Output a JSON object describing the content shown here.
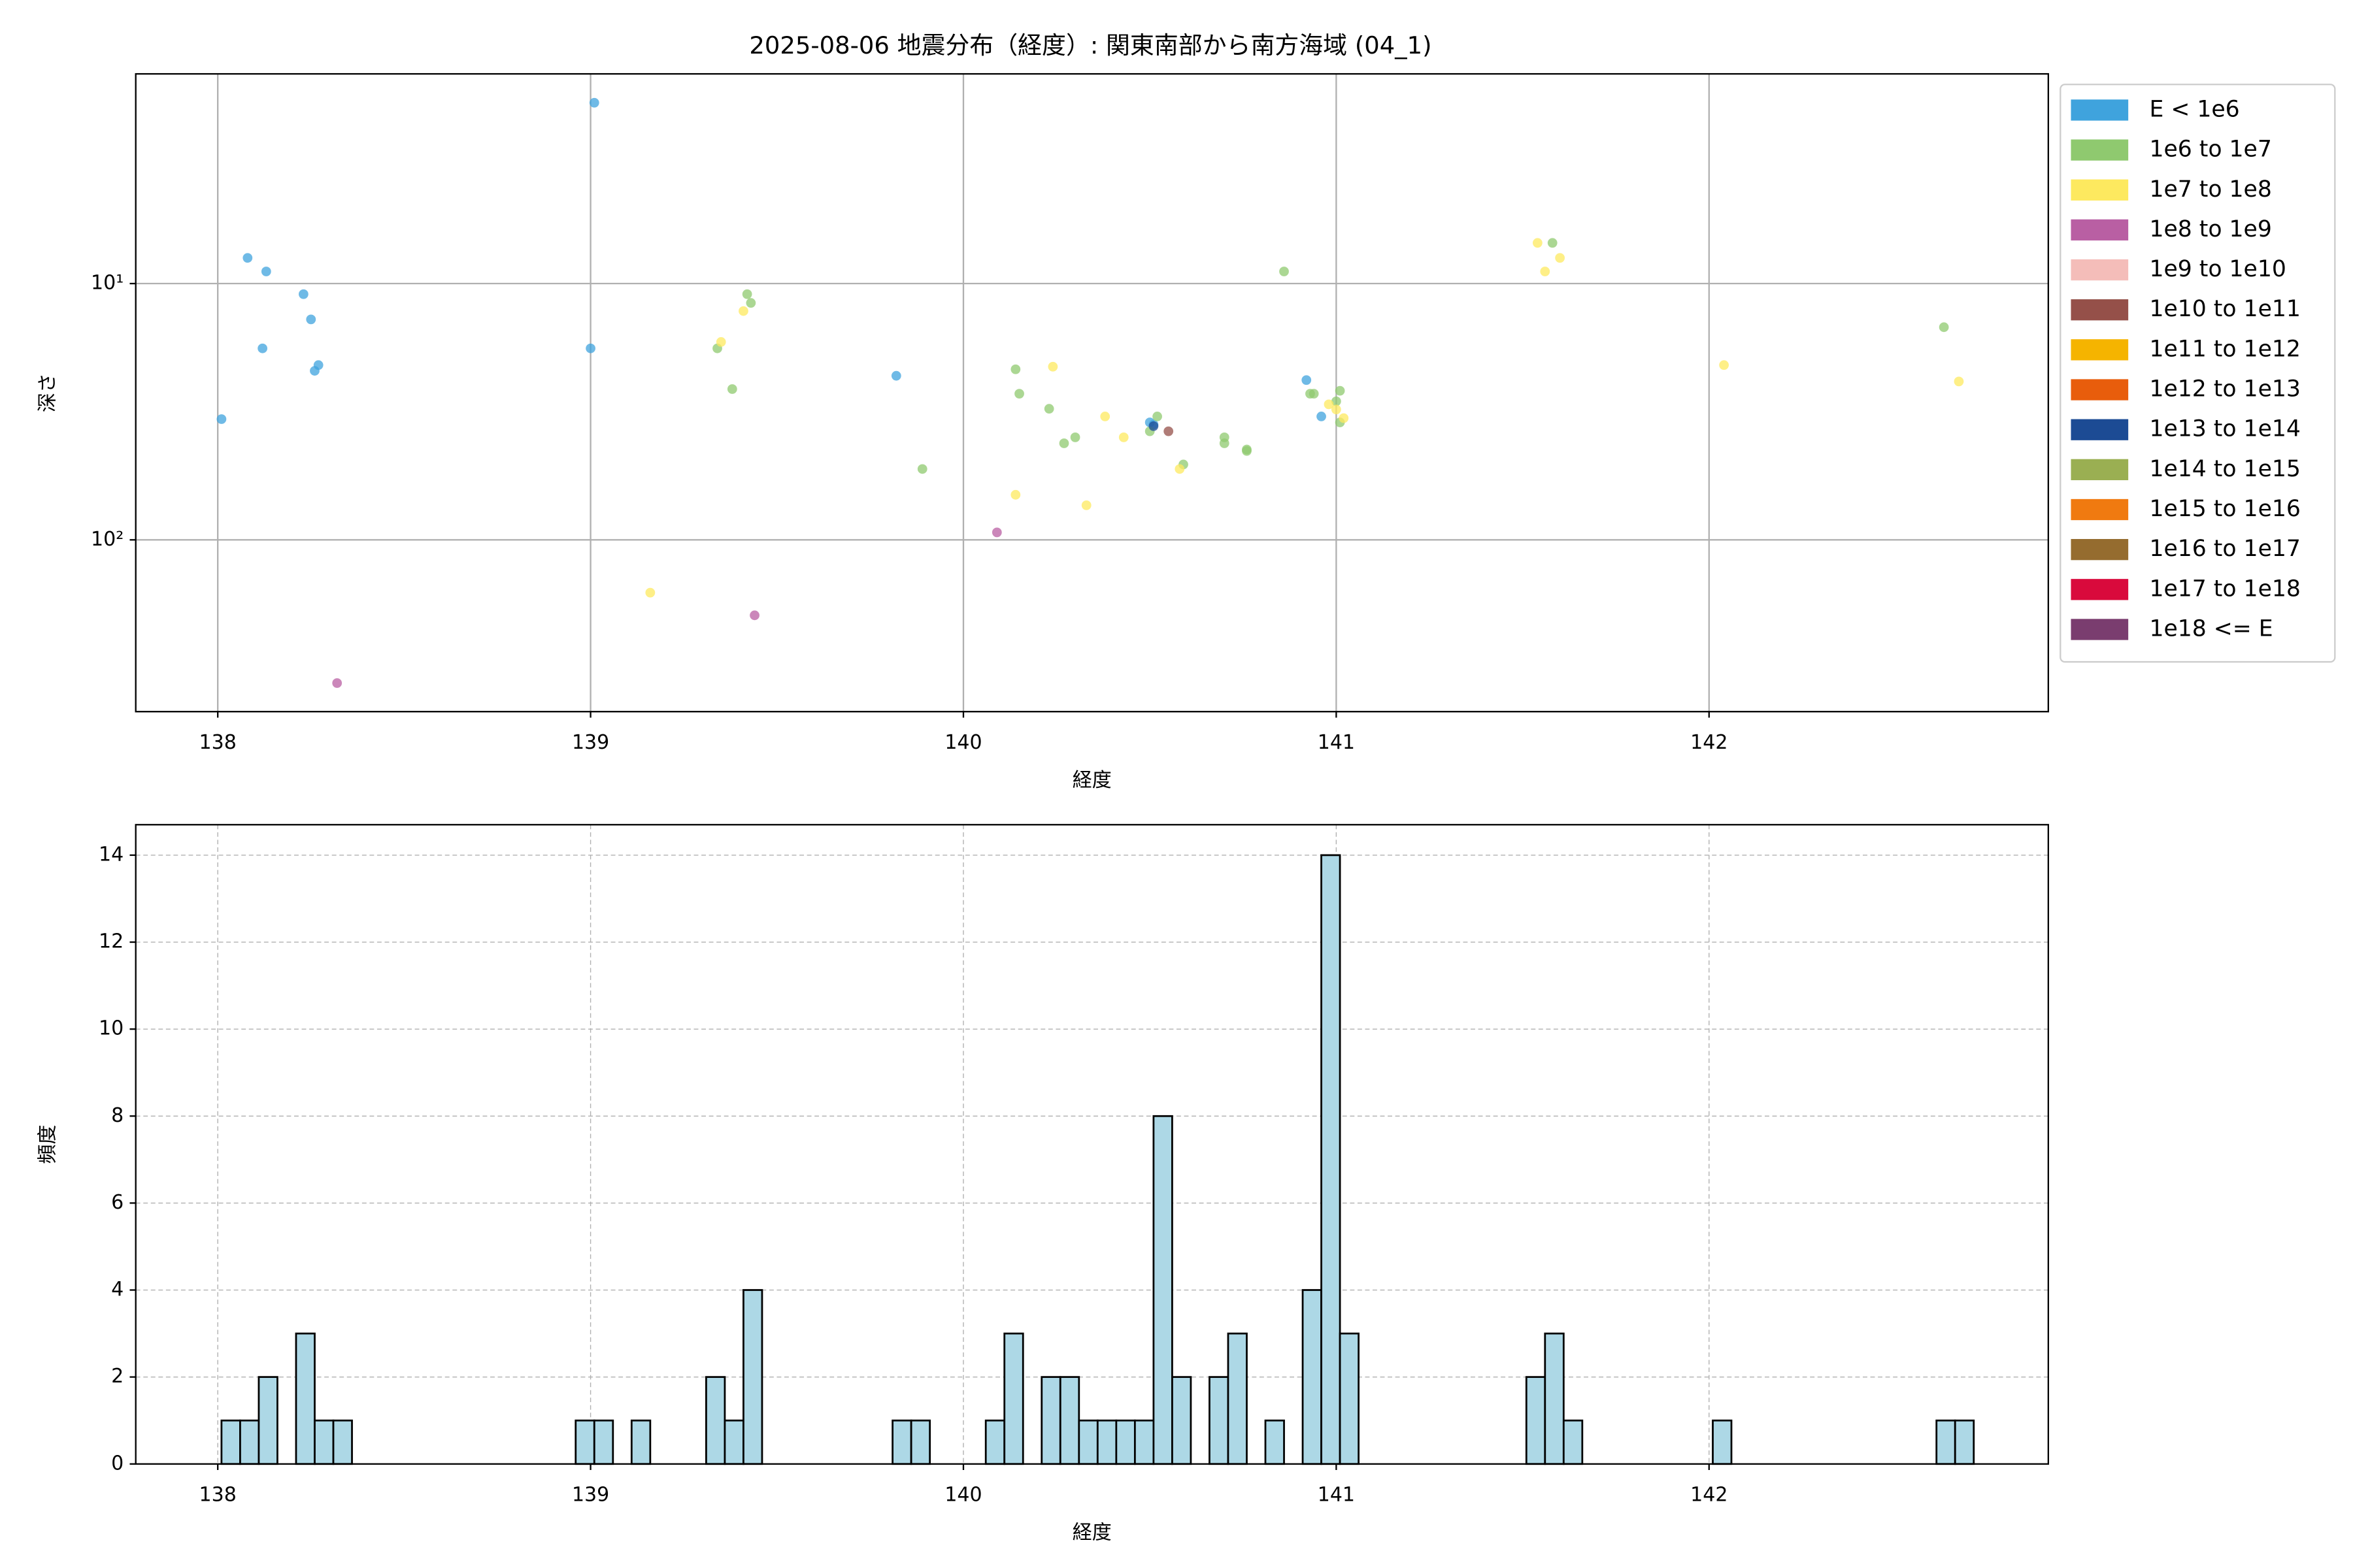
{
  "chart_data": [
    {
      "type": "scatter",
      "title": "2025-08-06 地震分布（経度）: 関東南部から南方海域 (04_1)",
      "xlabel": "経度",
      "ylabel": "深さ",
      "xlim": [
        137.78,
        142.91
      ],
      "xticks": [
        138,
        139,
        140,
        141,
        142
      ],
      "ylim": [
        1.52,
        468
      ],
      "y_log": true,
      "y_inverted": true,
      "yticks": [
        {
          "value": 10,
          "label": "10¹"
        },
        {
          "value": 100,
          "label": "10²"
        }
      ],
      "grid": true,
      "legend": "outside right",
      "series": [
        {
          "name": "E < 1e6",
          "color": "#3fa3dd",
          "x": [
            138.01,
            138.08,
            138.13,
            138.12,
            138.23,
            138.25,
            138.26,
            138.27,
            139.01,
            139.0,
            139.82,
            140.92,
            140.96,
            140.5,
            140.51
          ],
          "values": [
            33.8,
            7.94,
            8.97,
            17.9,
            11.0,
            13.8,
            21.9,
            20.8,
            1.97,
            17.9,
            22.9,
            23.8,
            33.0,
            34.8,
            35.5
          ]
        },
        {
          "name": "1e6 to 1e7",
          "color": "#8fc96f",
          "x": [
            139.34,
            139.42,
            139.43,
            139.38,
            139.89,
            140.14,
            140.15,
            140.23,
            140.27,
            140.3,
            140.5,
            140.52,
            140.59,
            140.7,
            140.7,
            140.76,
            140.76,
            140.86,
            140.93,
            140.94,
            141.0,
            141.01,
            141.01,
            142.63,
            141.58
          ],
          "values": [
            17.9,
            11.0,
            11.9,
            25.8,
            52.9,
            21.6,
            26.9,
            30.8,
            42.0,
            39.8,
            37.7,
            33.0,
            50.8,
            39.8,
            42.0,
            44.4,
            45.0,
            8.97,
            26.9,
            26.9,
            28.8,
            26.2,
            34.8,
            14.8,
            6.94
          ]
        },
        {
          "name": "1e7 to 1e8",
          "color": "#fde95f",
          "x": [
            139.35,
            139.41,
            139.16,
            140.14,
            140.24,
            140.33,
            140.38,
            140.43,
            140.58,
            140.98,
            141.0,
            141.02,
            141.54,
            141.56,
            141.6,
            142.04,
            142.67
          ],
          "values": [
            16.9,
            12.8,
            160.7,
            66.7,
            21.1,
            73.3,
            33.0,
            39.8,
            52.9,
            29.6,
            31.0,
            33.5,
            6.94,
            8.97,
            7.94,
            20.8,
            24.1
          ]
        },
        {
          "name": "1e8 to 1e9",
          "color": "#b95fa3",
          "x": [
            138.32,
            139.44,
            140.09
          ],
          "values": [
            362,
            197,
            93.5
          ]
        },
        {
          "name": "1e9 to 1e10",
          "color": "#f4bdb9",
          "x": [],
          "values": []
        },
        {
          "name": "1e10 to 1e11",
          "color": "#955049",
          "x": [
            140.55
          ],
          "values": [
            37.7
          ]
        },
        {
          "name": "1e11 to 1e12",
          "color": "#f5b400",
          "x": [],
          "values": []
        },
        {
          "name": "1e12 to 1e13",
          "color": "#e85d0c",
          "x": [],
          "values": []
        },
        {
          "name": "1e13 to 1e14",
          "color": "#1c4b94",
          "x": [
            140.51
          ],
          "values": [
            36.0
          ]
        },
        {
          "name": "1e14 to 1e15",
          "color": "#9aaf52",
          "x": [],
          "values": []
        },
        {
          "name": "1e15 to 1e16",
          "color": "#f07a10",
          "x": [],
          "values": []
        },
        {
          "name": "1e16 to 1e17",
          "color": "#956c2f",
          "x": [],
          "values": []
        },
        {
          "name": "1e17 to 1e18",
          "color": "#d90a3c",
          "x": [],
          "values": []
        },
        {
          "name": "1e18 <= E",
          "color": "#7a3d6f",
          "x": [],
          "values": []
        }
      ]
    },
    {
      "type": "histogram",
      "xlabel": "経度",
      "ylabel": "頻度",
      "xlim": [
        137.78,
        142.91
      ],
      "xticks": [
        138,
        139,
        140,
        141,
        142
      ],
      "ylim": [
        0,
        14.7
      ],
      "yticks": [
        0,
        2,
        4,
        6,
        8,
        10,
        12,
        14
      ],
      "grid": true,
      "grid_style": "dashed",
      "color": "#add8e6",
      "edgecolor": "#000000",
      "bins": [
        138.01,
        138.06,
        138.11,
        138.16,
        138.21,
        138.26,
        138.31,
        138.36,
        138.41,
        138.46,
        138.51,
        138.56,
        138.61,
        138.66,
        138.71,
        138.76,
        138.81,
        138.86,
        138.91,
        138.96,
        139.01,
        139.06,
        139.11,
        139.16,
        139.21,
        139.26,
        139.31,
        139.36,
        139.41,
        139.46,
        139.51,
        139.56,
        139.61,
        139.66,
        139.71,
        139.76,
        139.81,
        139.86,
        139.91,
        139.96,
        140.01,
        140.06,
        140.11,
        140.16,
        140.21,
        140.26,
        140.31,
        140.36,
        140.41,
        140.46,
        140.51,
        140.56,
        140.61,
        140.66,
        140.71,
        140.76,
        140.81,
        140.86,
        140.91,
        140.96,
        141.01,
        141.06,
        141.11,
        141.16,
        141.21,
        141.26,
        141.31,
        141.36,
        141.41,
        141.46,
        141.51,
        141.56,
        141.61,
        141.66,
        141.71,
        141.76,
        141.81,
        141.86,
        141.91,
        141.96,
        142.01,
        142.06,
        142.11,
        142.16,
        142.21,
        142.26,
        142.31,
        142.36,
        142.41,
        142.46,
        142.51,
        142.56,
        142.61,
        142.66,
        142.71
      ],
      "values": [
        1,
        1,
        2,
        0,
        3,
        1,
        1,
        0,
        0,
        0,
        0,
        0,
        0,
        0,
        0,
        0,
        0,
        0,
        0,
        1,
        1,
        0,
        1,
        0,
        0,
        0,
        2,
        1,
        4,
        0,
        0,
        0,
        0,
        0,
        0,
        0,
        1,
        1,
        0,
        0,
        0,
        1,
        3,
        0,
        2,
        2,
        1,
        1,
        1,
        1,
        8,
        2,
        0,
        2,
        3,
        0,
        1,
        0,
        4,
        14,
        3,
        0,
        0,
        0,
        0,
        0,
        0,
        0,
        0,
        0,
        2,
        3,
        1,
        0,
        0,
        0,
        0,
        0,
        0,
        0,
        1,
        0,
        0,
        0,
        0,
        0,
        0,
        0,
        0,
        0,
        0,
        0,
        1,
        1
      ]
    }
  ]
}
